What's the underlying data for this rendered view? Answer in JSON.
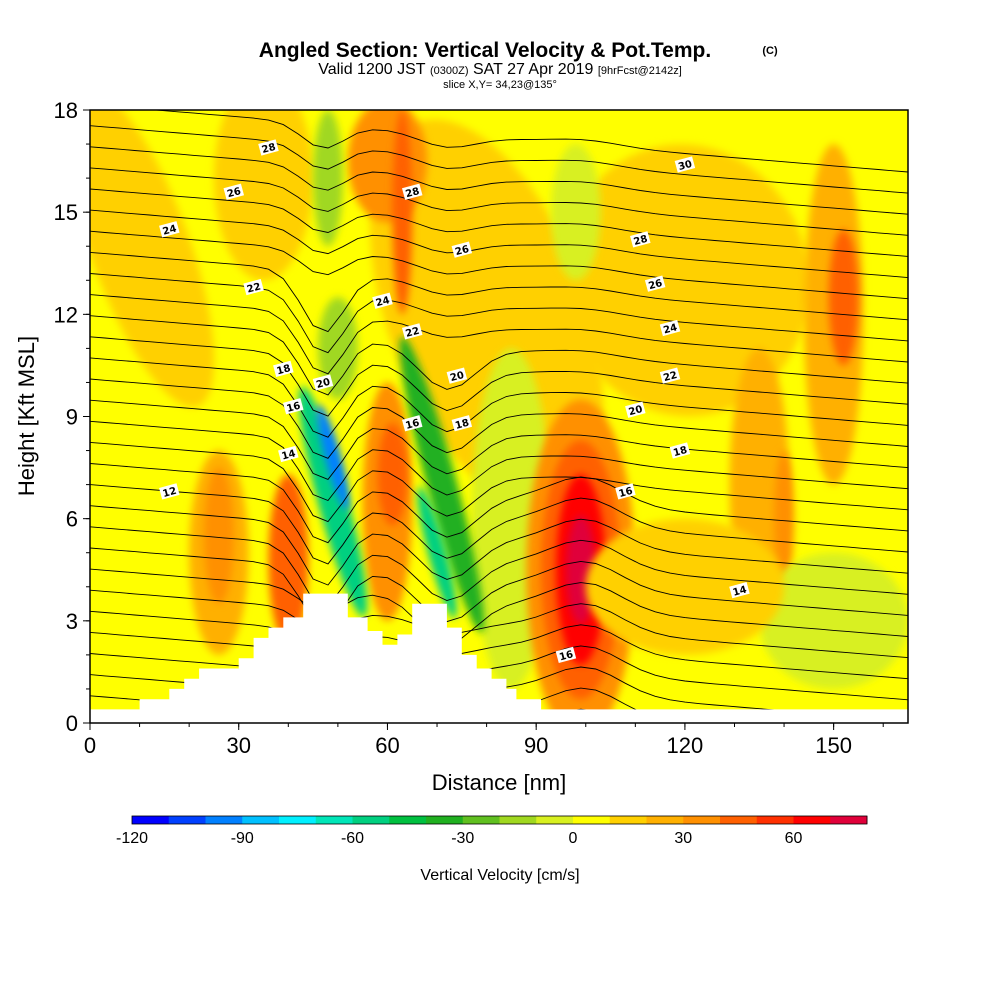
{
  "title": {
    "main": "Angled Section: Vertical Velocity & Pot.Temp.",
    "copyright": "(C)",
    "valid_prefix": "Valid 1200 JST",
    "valid_utc": "(0300Z)",
    "valid_date": "SAT 27 Apr 2019",
    "forecast": "[9hrFcst@2142z]",
    "slice": "slice X,Y= 34,23@135°"
  },
  "chart_data": {
    "type": "heatmap",
    "xlabel": "Distance [nm]",
    "ylabel": "Height [Kft MSL]",
    "xlim": [
      0,
      165
    ],
    "ylim": [
      0,
      18
    ],
    "x_ticks": [
      0,
      30,
      60,
      90,
      120,
      150
    ],
    "y_ticks": [
      0,
      3,
      6,
      9,
      12,
      15,
      18
    ],
    "colorbar": {
      "label": "Vertical Velocity [cm/s]",
      "range": [
        -120,
        80
      ],
      "step": 10,
      "tick_values": [
        -120,
        -90,
        -60,
        -30,
        0,
        30,
        60
      ],
      "colors": [
        "#0000ff",
        "#0040ff",
        "#0080ff",
        "#00c0ff",
        "#00f0ff",
        "#00e6b8",
        "#00d080",
        "#00c040",
        "#20b020",
        "#60c020",
        "#a0d820",
        "#d8f020",
        "#ffff00",
        "#ffd000",
        "#ffb000",
        "#ff9000",
        "#ff6000",
        "#ff3000",
        "#ff0000",
        "#e0003a",
        "#b00060",
        "#800080"
      ]
    },
    "terrain_profile": [
      [
        0,
        0.4
      ],
      [
        10,
        0.4
      ],
      [
        10,
        0.7
      ],
      [
        16,
        0.7
      ],
      [
        16,
        1.0
      ],
      [
        19,
        1.0
      ],
      [
        19,
        1.3
      ],
      [
        22,
        1.3
      ],
      [
        22,
        1.6
      ],
      [
        30,
        1.6
      ],
      [
        30,
        1.9
      ],
      [
        33,
        1.9
      ],
      [
        33,
        2.5
      ],
      [
        36,
        2.5
      ],
      [
        36,
        2.8
      ],
      [
        39,
        2.8
      ],
      [
        39,
        3.1
      ],
      [
        43,
        3.1
      ],
      [
        43,
        3.8
      ],
      [
        52,
        3.8
      ],
      [
        52,
        3.1
      ],
      [
        56,
        3.1
      ],
      [
        56,
        2.7
      ],
      [
        59,
        2.7
      ],
      [
        59,
        2.3
      ],
      [
        62,
        2.3
      ],
      [
        62,
        2.6
      ],
      [
        65,
        2.6
      ],
      [
        65,
        3.5
      ],
      [
        72,
        3.5
      ],
      [
        72,
        2.8
      ],
      [
        75,
        2.8
      ],
      [
        75,
        2.0
      ],
      [
        78,
        2.0
      ],
      [
        78,
        1.6
      ],
      [
        81,
        1.6
      ],
      [
        81,
        1.3
      ],
      [
        84,
        1.3
      ],
      [
        84,
        1.0
      ],
      [
        86,
        1.0
      ],
      [
        86,
        0.7
      ],
      [
        91,
        0.7
      ],
      [
        91,
        0.4
      ],
      [
        165,
        0.4
      ]
    ],
    "theta_contour_labels": [
      {
        "value": "12",
        "x": 16,
        "y": 6.8
      },
      {
        "value": "14",
        "x": 40,
        "y": 7.9
      },
      {
        "value": "16",
        "x": 41,
        "y": 9.3
      },
      {
        "value": "18",
        "x": 39,
        "y": 10.4
      },
      {
        "value": "20",
        "x": 47,
        "y": 10.0
      },
      {
        "value": "22",
        "x": 33,
        "y": 12.8
      },
      {
        "value": "24",
        "x": 16,
        "y": 14.5
      },
      {
        "value": "26",
        "x": 29,
        "y": 15.6
      },
      {
        "value": "28",
        "x": 36,
        "y": 16.9
      },
      {
        "value": "28",
        "x": 65,
        "y": 15.6
      },
      {
        "value": "26",
        "x": 75,
        "y": 13.9
      },
      {
        "value": "24",
        "x": 59,
        "y": 12.4
      },
      {
        "value": "22",
        "x": 65,
        "y": 11.5
      },
      {
        "value": "20",
        "x": 74,
        "y": 10.2
      },
      {
        "value": "18",
        "x": 75,
        "y": 8.8
      },
      {
        "value": "16",
        "x": 65,
        "y": 8.8
      },
      {
        "value": "30",
        "x": 120,
        "y": 16.4
      },
      {
        "value": "28",
        "x": 111,
        "y": 14.2
      },
      {
        "value": "26",
        "x": 114,
        "y": 12.9
      },
      {
        "value": "24",
        "x": 117,
        "y": 11.6
      },
      {
        "value": "22",
        "x": 117,
        "y": 10.2
      },
      {
        "value": "20",
        "x": 110,
        "y": 9.2
      },
      {
        "value": "18",
        "x": 119,
        "y": 8.0
      },
      {
        "value": "16",
        "x": 108,
        "y": 6.8
      },
      {
        "value": "16",
        "x": 96,
        "y": 2.0
      },
      {
        "value": "14",
        "x": 131,
        "y": 3.9
      }
    ],
    "velocity_features": [
      {
        "x": 49,
        "y": 7.5,
        "value": -100
      },
      {
        "x": 71,
        "y": 6.5,
        "value": -50
      },
      {
        "x": 99,
        "y": 4.5,
        "value": 80
      },
      {
        "x": 42,
        "y": 5.5,
        "value": 40
      },
      {
        "x": 61,
        "y": 7.0,
        "value": 40
      },
      {
        "x": 26,
        "y": 5.5,
        "value": 30
      },
      {
        "x": 152,
        "y": 12.5,
        "value": 40
      }
    ]
  }
}
